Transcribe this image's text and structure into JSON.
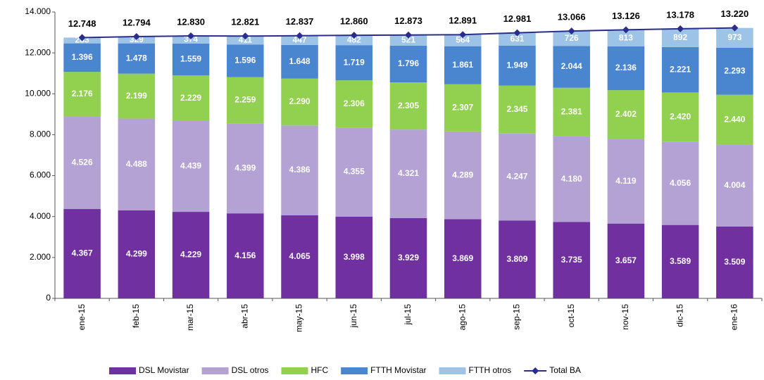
{
  "chart_data": {
    "type": "bar",
    "stacked": true,
    "categories": [
      "ene-15",
      "feb-15",
      "mar-15",
      "abr-15",
      "may-15",
      "jun-15",
      "jul-15",
      "ago-15",
      "sep-15",
      "oct-15",
      "nov-15",
      "dic-15",
      "ene-16"
    ],
    "ylim": [
      0,
      14000
    ],
    "yticks": [
      {
        "value": 0,
        "label": "0"
      },
      {
        "value": 2000,
        "label": "2.000"
      },
      {
        "value": 4000,
        "label": "4.000"
      },
      {
        "value": 6000,
        "label": "6.000"
      },
      {
        "value": 8000,
        "label": "8.000"
      },
      {
        "value": 10000,
        "label": "10.000"
      },
      {
        "value": 12000,
        "label": "12.000"
      },
      {
        "value": 14000,
        "label": "14.000"
      }
    ],
    "grid": false,
    "series": [
      {
        "name": "DSL Movistar",
        "color": "#7030a0",
        "values": [
          4367,
          4299,
          4229,
          4156,
          4065,
          3998,
          3929,
          3869,
          3809,
          3735,
          3657,
          3589,
          3509
        ],
        "value_labels": [
          "4.367",
          "4.299",
          "4.229",
          "4.156",
          "4.065",
          "3.998",
          "3.929",
          "3.869",
          "3.809",
          "3.735",
          "3.657",
          "3.589",
          "3.509"
        ]
      },
      {
        "name": "DSL otros",
        "color": "#b3a2d3",
        "values": [
          4526,
          4488,
          4439,
          4399,
          4386,
          4355,
          4321,
          4289,
          4247,
          4180,
          4119,
          4056,
          4004
        ],
        "value_labels": [
          "4.526",
          "4.488",
          "4.439",
          "4.399",
          "4.386",
          "4.355",
          "4.321",
          "4.289",
          "4.247",
          "4.180",
          "4.119",
          "4.056",
          "4.004"
        ]
      },
      {
        "name": "HFC",
        "color": "#92d050",
        "values": [
          2176,
          2199,
          2229,
          2259,
          2290,
          2306,
          2305,
          2307,
          2345,
          2381,
          2402,
          2420,
          2440
        ],
        "value_labels": [
          "2.176",
          "2.199",
          "2.229",
          "2.259",
          "2.290",
          "2.306",
          "2.305",
          "2.307",
          "2.345",
          "2.381",
          "2.402",
          "2.420",
          "2.440"
        ]
      },
      {
        "name": "FTTH Movistar",
        "color": "#4a86d0",
        "values": [
          1396,
          1478,
          1559,
          1596,
          1648,
          1719,
          1796,
          1861,
          1949,
          2044,
          2136,
          2221,
          2293
        ],
        "value_labels": [
          "1.396",
          "1.478",
          "1.559",
          "1.596",
          "1.648",
          "1.719",
          "1.796",
          "1.861",
          "1.949",
          "2.044",
          "2.136",
          "2.221",
          "2.293"
        ]
      },
      {
        "name": "FTTH otros",
        "color": "#9dc3e6",
        "values": [
          283,
          329,
          374,
          411,
          447,
          482,
          521,
          564,
          631,
          726,
          813,
          892,
          973
        ]
      },
      {
        "name": "Total BA",
        "type": "line",
        "color": "#2b2d8c",
        "values": [
          12748,
          12794,
          12830,
          12821,
          12837,
          12860,
          12873,
          12891,
          12981,
          13066,
          13126,
          13178,
          13220
        ],
        "value_labels": [
          "12.748",
          "12.794",
          "12.830",
          "12.821",
          "12.837",
          "12.860",
          "12.873",
          "12.891",
          "12.981",
          "13.066",
          "13.126",
          "13.178",
          "13.220"
        ]
      }
    ]
  }
}
